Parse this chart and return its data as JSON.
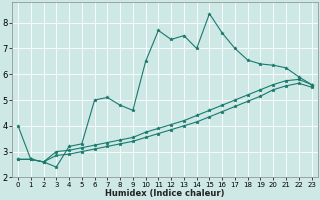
{
  "xlabel": "Humidex (Indice chaleur)",
  "background_color": "#cde8e5",
  "grid_color": "#ffffff",
  "line_color": "#1a7a6e",
  "xlim": [
    -0.5,
    23.5
  ],
  "ylim": [
    2.0,
    8.8
  ],
  "xticks": [
    0,
    1,
    2,
    3,
    4,
    5,
    6,
    7,
    8,
    9,
    10,
    11,
    12,
    13,
    14,
    15,
    16,
    17,
    18,
    19,
    20,
    21,
    22,
    23
  ],
  "yticks": [
    2,
    3,
    4,
    5,
    6,
    7,
    8
  ],
  "series1_x": [
    0,
    1,
    2,
    3,
    4,
    5,
    6,
    7,
    8,
    9,
    10,
    11,
    12,
    13,
    14,
    15,
    16,
    17,
    18,
    19,
    20,
    21,
    22,
    23
  ],
  "series1_y": [
    4.0,
    2.7,
    2.6,
    2.4,
    3.2,
    3.3,
    5.0,
    5.1,
    4.8,
    4.6,
    6.5,
    7.7,
    7.35,
    7.5,
    7.0,
    8.35,
    7.6,
    7.0,
    6.55,
    6.4,
    6.35,
    6.25,
    5.9,
    5.6
  ],
  "series2_x": [
    0,
    1,
    2,
    3,
    4,
    5,
    6,
    7,
    8,
    9,
    10,
    11,
    12,
    13,
    14,
    15,
    16,
    17,
    18,
    19,
    20,
    21,
    22,
    23
  ],
  "series2_y": [
    2.7,
    2.7,
    2.6,
    3.0,
    3.05,
    3.15,
    3.25,
    3.35,
    3.45,
    3.55,
    3.75,
    3.9,
    4.05,
    4.2,
    4.4,
    4.6,
    4.8,
    5.0,
    5.2,
    5.4,
    5.6,
    5.75,
    5.8,
    5.6
  ],
  "series3_x": [
    0,
    1,
    2,
    3,
    4,
    5,
    6,
    7,
    8,
    9,
    10,
    11,
    12,
    13,
    14,
    15,
    16,
    17,
    18,
    19,
    20,
    21,
    22,
    23
  ],
  "series3_y": [
    2.7,
    2.7,
    2.6,
    2.85,
    2.9,
    3.0,
    3.1,
    3.2,
    3.3,
    3.4,
    3.55,
    3.7,
    3.85,
    4.0,
    4.15,
    4.35,
    4.55,
    4.75,
    4.95,
    5.15,
    5.4,
    5.55,
    5.65,
    5.5
  ],
  "tick_fontsize_x": 5,
  "tick_fontsize_y": 6,
  "xlabel_fontsize": 6,
  "lw": 0.8,
  "ms": 2.5
}
